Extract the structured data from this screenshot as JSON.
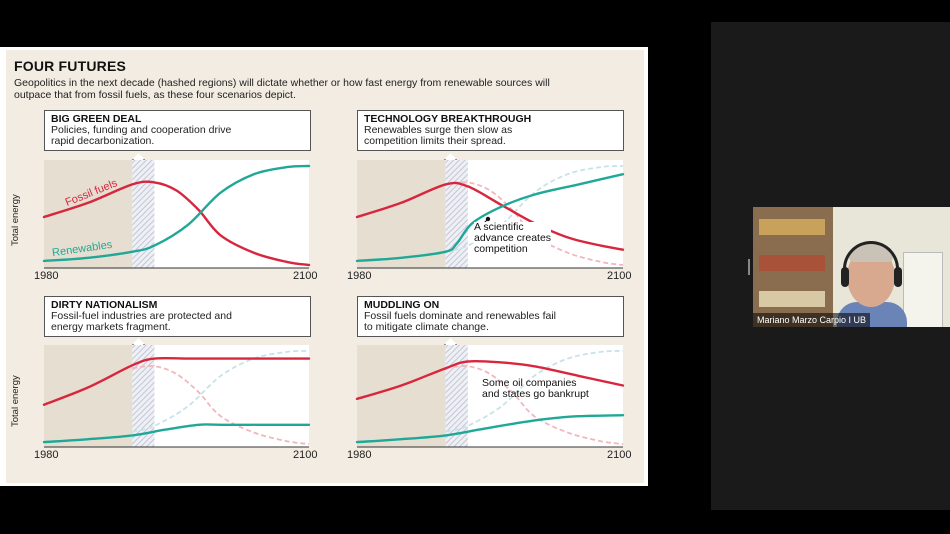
{
  "figure": {
    "title": "FOUR FUTURES",
    "subtitle": "Geopolitics in the next decade (hashed regions) will dictate whether or how fast energy from renewable sources will outpace that from fossil fuels, as these four scenarios depict.",
    "y_axis_title": "Total energy",
    "x_start": "1980",
    "x_end": "2100",
    "colors": {
      "fossil": "#d7263d",
      "renewable": "#1fa898",
      "past_shade": "#e6ded0",
      "hatch": "#b9bccc"
    }
  },
  "panels": [
    {
      "heading": "BIG GREEN DEAL",
      "description": "Policies, funding and cooperation drive\nrapid decarbonization.",
      "fossil_label": "Fossil fuels",
      "renewable_label": "Renewables",
      "annotation": ""
    },
    {
      "heading": "TECHNOLOGY BREAKTHROUGH",
      "description": "Renewables surge then slow as\ncompetition limits their spread.",
      "annotation": "A scientific\nadvance creates\ncompetition"
    },
    {
      "heading": "DIRTY NATIONALISM",
      "description": "Fossil-fuel industries are protected and\nenergy markets fragment.",
      "annotation": ""
    },
    {
      "heading": "MUDDLING ON",
      "description": "Fossil fuels dominate and renewables fail\nto mitigate climate change.",
      "annotation": "Some oil companies\nand states go bankrupt"
    }
  ],
  "chart_data": [
    {
      "type": "line",
      "title": "BIG GREEN DEAL",
      "xlim": [
        1980,
        2100
      ],
      "hashed_region": [
        2020,
        2030
      ],
      "series": [
        {
          "name": "Fossil fuels",
          "x": [
            1980,
            2000,
            2020,
            2030,
            2040,
            2050,
            2060,
            2075,
            2090,
            2100
          ],
          "y": [
            0.48,
            0.62,
            0.8,
            0.82,
            0.74,
            0.55,
            0.3,
            0.13,
            0.04,
            0.01
          ]
        },
        {
          "name": "Renewables",
          "x": [
            1980,
            2000,
            2020,
            2030,
            2045,
            2060,
            2075,
            2090,
            2100
          ],
          "y": [
            0.05,
            0.08,
            0.14,
            0.2,
            0.4,
            0.72,
            0.9,
            0.97,
            0.98
          ]
        }
      ]
    },
    {
      "type": "line",
      "title": "TECHNOLOGY BREAKTHROUGH",
      "xlim": [
        1980,
        2100
      ],
      "hashed_region": [
        2020,
        2030
      ],
      "series": [
        {
          "x": [
            1980,
            2000,
            2020,
            2030,
            2045,
            2060,
            2075,
            2090,
            2100
          ],
          "y": [
            0.48,
            0.62,
            0.8,
            0.78,
            0.6,
            0.42,
            0.28,
            0.2,
            0.16
          ]
        },
        {
          "x": [
            1980,
            2000,
            2020,
            2025,
            2032,
            2045,
            2060,
            2080,
            2100
          ],
          "y": [
            0.05,
            0.08,
            0.14,
            0.22,
            0.42,
            0.58,
            0.7,
            0.8,
            0.9
          ]
        }
      ]
    },
    {
      "type": "line",
      "title": "DIRTY NATIONALISM",
      "xlim": [
        1980,
        2100
      ],
      "hashed_region": [
        2020,
        2030
      ],
      "series": [
        {
          "x": [
            1980,
            2000,
            2020,
            2030,
            2045,
            2060,
            2080,
            2100
          ],
          "y": [
            0.42,
            0.6,
            0.83,
            0.9,
            0.9,
            0.9,
            0.9,
            0.9
          ]
        },
        {
          "x": [
            1980,
            2000,
            2020,
            2035,
            2050,
            2060,
            2080,
            2100
          ],
          "y": [
            0.03,
            0.06,
            0.1,
            0.16,
            0.21,
            0.21,
            0.21,
            0.21
          ]
        }
      ]
    },
    {
      "type": "line",
      "title": "MUDDLING ON",
      "xlim": [
        1980,
        2100
      ],
      "hashed_region": [
        2020,
        2030
      ],
      "series": [
        {
          "x": [
            1980,
            2000,
            2020,
            2030,
            2045,
            2060,
            2080,
            2100
          ],
          "y": [
            0.48,
            0.62,
            0.8,
            0.87,
            0.86,
            0.82,
            0.72,
            0.62
          ]
        },
        {
          "x": [
            1980,
            2000,
            2020,
            2035,
            2050,
            2065,
            2080,
            2100
          ],
          "y": [
            0.03,
            0.06,
            0.1,
            0.16,
            0.22,
            0.27,
            0.3,
            0.31
          ]
        }
      ]
    }
  ],
  "participant": {
    "name": "Mariano Marzo Carpio I UB"
  }
}
